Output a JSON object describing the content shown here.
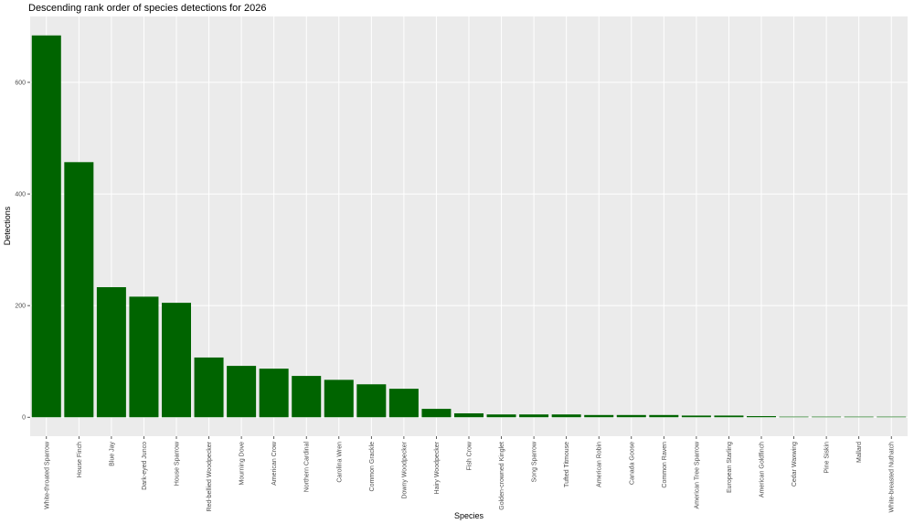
{
  "chart_data": {
    "type": "bar",
    "title": "Descending rank order of species detections for 2026",
    "x_label": "Species",
    "y_label": "Detections",
    "categories": [
      "White-throated Sparrow",
      "House Finch",
      "Blue Jay",
      "Dark-eyed Junco",
      "House Sparrow",
      "Red-bellied Woodpecker",
      "Mourning Dove",
      "American Crow",
      "Northern Cardinal",
      "Carolina Wren",
      "Common Grackle",
      "Downy Woodpecker",
      "Hairy Woodpecker",
      "Fish Crow",
      "Golden-crowned Kinglet",
      "Song Sparrow",
      "Tufted Titmouse",
      "American Robin",
      "Canada Goose",
      "Common Raven",
      "American Tree Sparrow",
      "European Starling",
      "American Goldfinch",
      "Cedar Waxwing",
      "Pine Siskin",
      "Mallard",
      "White-breasted Nuthatch"
    ],
    "values": [
      684,
      457,
      233,
      216,
      205,
      107,
      92,
      87,
      74,
      67,
      59,
      51,
      15,
      7,
      5,
      5,
      5,
      4,
      4,
      4,
      3,
      3,
      2,
      1,
      1,
      1,
      1
    ],
    "color": "#006400",
    "ylim": [
      -34,
      718
    ],
    "yticks": [
      0,
      200,
      400,
      600
    ],
    "grid": true
  }
}
